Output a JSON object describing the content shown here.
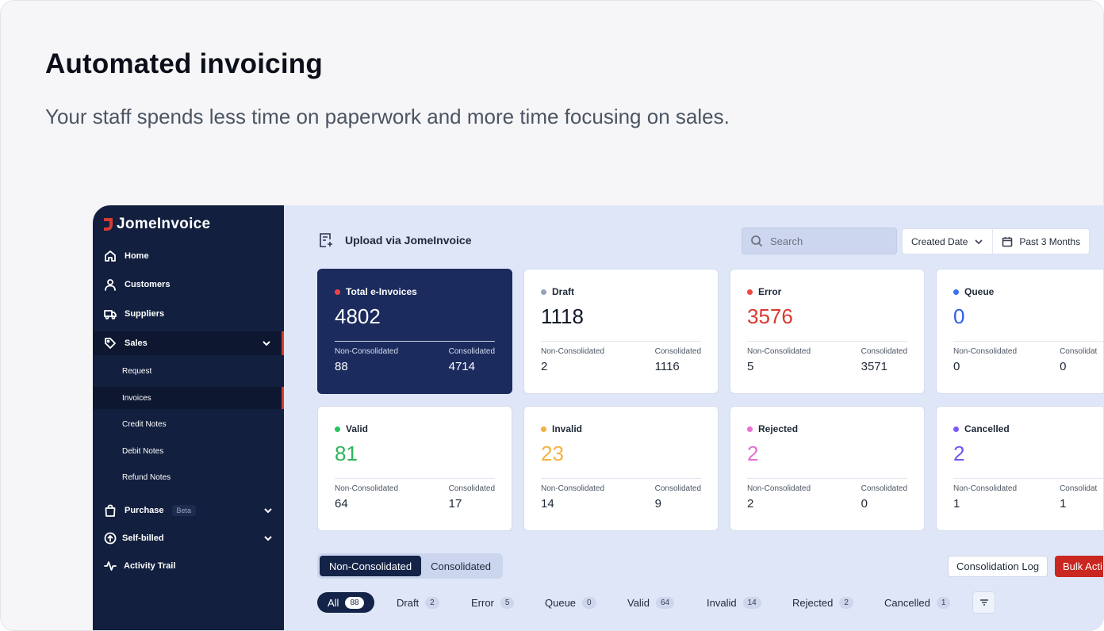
{
  "hero": {
    "title": "Automated invoicing",
    "subtitle": "Your staff spends less time on paperwork and more time focusing on sales."
  },
  "app": {
    "logo": "JomeInvoice",
    "brand_color": "#d63b2f",
    "sidebar": {
      "items": [
        {
          "label": "Home",
          "icon": "home-icon"
        },
        {
          "label": "Customers",
          "icon": "user-icon"
        },
        {
          "label": "Suppliers",
          "icon": "truck-icon"
        },
        {
          "label": "Sales",
          "icon": "tag-icon",
          "expanded": true
        },
        {
          "label": "Purchase",
          "icon": "bag-icon",
          "badge": "Beta"
        },
        {
          "label": "Self-billed",
          "icon": "upload-circle-icon"
        },
        {
          "label": "Activity Trail",
          "icon": "activity-icon"
        }
      ],
      "sales_sub": [
        "Request",
        "Invoices",
        "Credit Notes",
        "Debit Notes",
        "Refund Notes"
      ]
    },
    "toolbar": {
      "upload_label": "Upload via JomeInvoice",
      "search_placeholder": "Search",
      "date_field": "Created Date",
      "date_range": "Past 3 Months"
    },
    "cards": [
      {
        "title": "Total e-Invoices",
        "total": "4802",
        "non_label": "Non-Consolidated",
        "non_val": "88",
        "con_label": "Consolidated",
        "con_val": "4714",
        "dot": "#ef4444",
        "color": "#ffffff"
      },
      {
        "title": "Draft",
        "total": "1118",
        "non_label": "Non-Consolidated",
        "non_val": "2",
        "con_label": "Consolidated",
        "con_val": "1116",
        "dot": "#94a3b8",
        "color": "#111827"
      },
      {
        "title": "Error",
        "total": "3576",
        "non_label": "Non-Consolidated",
        "non_val": "5",
        "con_label": "Consolidated",
        "con_val": "3571",
        "dot": "#ef4444",
        "color": "#d73a2f"
      },
      {
        "title": "Queue",
        "total": "0",
        "non_label": "Non-Consolidated",
        "non_val": "0",
        "con_label": "Consolidat",
        "con_val": "0",
        "dot": "#3b6ff0",
        "color": "#2f5fe8"
      },
      {
        "title": "Valid",
        "total": "81",
        "non_label": "Non-Consolidated",
        "non_val": "64",
        "con_label": "Consolidated",
        "con_val": "17",
        "dot": "#22c55e",
        "color": "#2fb55a"
      },
      {
        "title": "Invalid",
        "total": "23",
        "non_label": "Non-Consolidated",
        "non_val": "14",
        "con_label": "Consolidated",
        "con_val": "9",
        "dot": "#f5b13d",
        "color": "#f3b341"
      },
      {
        "title": "Rejected",
        "total": "2",
        "non_label": "Non-Consolidated",
        "non_val": "2",
        "con_label": "Consolidated",
        "con_val": "0",
        "dot": "#ec6fd3",
        "color": "#e46fcf"
      },
      {
        "title": "Cancelled",
        "total": "2",
        "non_label": "Non-Consolidated",
        "non_val": "1",
        "con_label": "Consolidat",
        "con_val": "1",
        "dot": "#7b5bf0",
        "color": "#7555ee"
      }
    ],
    "segment": [
      "Non-Consolidated",
      "Consolidated"
    ],
    "actions": {
      "log": "Consolidation Log",
      "bulk": "Bulk Acti"
    },
    "status_tabs": [
      {
        "label": "All",
        "count": "88"
      },
      {
        "label": "Draft",
        "count": "2"
      },
      {
        "label": "Error",
        "count": "5"
      },
      {
        "label": "Queue",
        "count": "0"
      },
      {
        "label": "Valid",
        "count": "64"
      },
      {
        "label": "Invalid",
        "count": "14"
      },
      {
        "label": "Rejected",
        "count": "2"
      },
      {
        "label": "Cancelled",
        "count": "1"
      }
    ]
  }
}
